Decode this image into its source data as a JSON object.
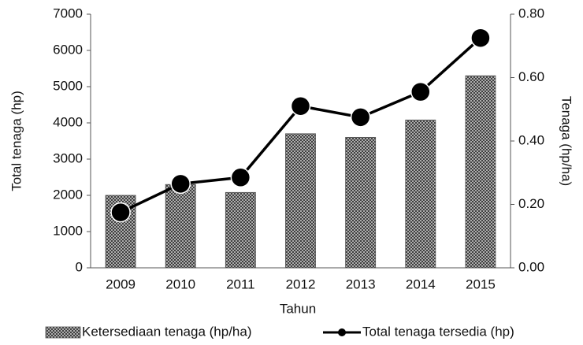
{
  "chart_data": {
    "type": "bar_line",
    "xlabel": "Tahun",
    "ylabel": "Total tenaga (hp)",
    "y2label": "Tenaga (hp/ha)",
    "categories": [
      "2009",
      "2010",
      "2011",
      "2012",
      "2013",
      "2014",
      "2015"
    ],
    "series": [
      {
        "name": "Ketersediaan tenaga (hp/ha)",
        "type": "bar",
        "color": "#555555",
        "values": [
          2000,
          2300,
          2080,
          3700,
          3600,
          4080,
          5300
        ]
      },
      {
        "name": "Total tenaga tersedia (hp)",
        "type": "line",
        "axis": "y2",
        "color": "#000000",
        "values": [
          0.175,
          0.265,
          0.285,
          0.51,
          0.475,
          0.555,
          0.725
        ]
      }
    ],
    "ylim": [
      0,
      7000
    ],
    "yticks": [
      0,
      1000,
      2000,
      3000,
      4000,
      5000,
      6000,
      7000
    ],
    "y2lim": [
      0,
      0.8
    ],
    "y2ticks": [
      {
        "value": 0,
        "label": "0.00"
      },
      {
        "value": 0.2,
        "label": "0.20"
      },
      {
        "value": 0.4,
        "label": "0.40"
      },
      {
        "value": 0.6,
        "label": "0.60"
      },
      {
        "value": 0.8,
        "label": "0.80"
      }
    ],
    "legend": "bottom"
  }
}
